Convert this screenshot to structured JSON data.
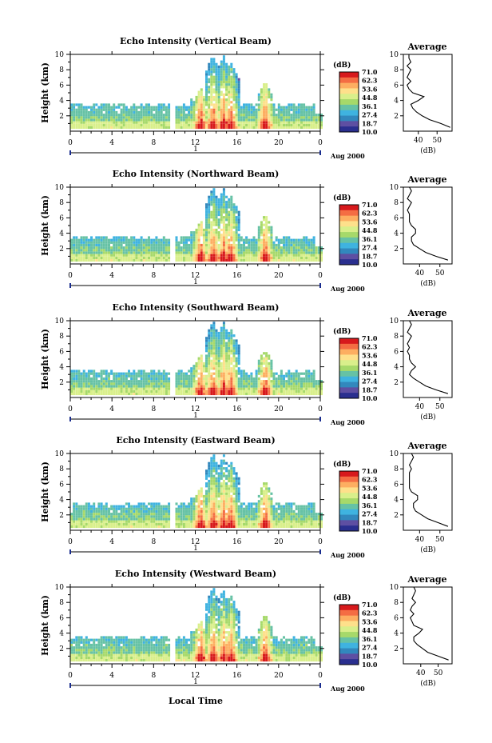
{
  "colorbar": {
    "unit": "(dB)",
    "ticks": [
      "71.0",
      "62.3",
      "53.6",
      "44.8",
      "36.1",
      "27.4",
      "18.7",
      "10.0"
    ],
    "colors": [
      "#d7191c",
      "#f46d43",
      "#fdae61",
      "#fee08b",
      "#d9ef8b",
      "#a6d96a",
      "#66c2a5",
      "#3fb3e0",
      "#3288bd",
      "#5e4fa2",
      "#2a2f8f"
    ]
  },
  "shared_x": {
    "ticks": [
      "0",
      "4",
      "8",
      "12",
      "16",
      "20",
      "0"
    ],
    "day_label": "1",
    "month_label": "Aug 2000",
    "xlabel": "Local Time"
  },
  "chart_data": [
    {
      "type": "heatmap",
      "title": "Echo Intensity (Vertical Beam)",
      "ylabel": "Height (km)",
      "yticks": [
        "2",
        "4",
        "6",
        "8",
        "10"
      ],
      "xlim": [
        0,
        24
      ],
      "ylim": [
        0,
        10
      ],
      "zlim": [
        10.0,
        71.0
      ],
      "profile": {
        "title": "Average",
        "xlabel": "(dB)",
        "xticks": [
          "40",
          "50"
        ],
        "yticks": [
          "2",
          "4",
          "6",
          "8",
          "10"
        ],
        "xlim": [
          32,
          58
        ],
        "heights": [
          0.5,
          1,
          1.5,
          2,
          2.5,
          3,
          3.5,
          4,
          4.5,
          5,
          5.5,
          6,
          6.5,
          7,
          7.5,
          8,
          8.5,
          9,
          9.5,
          10
        ],
        "values": [
          57,
          52,
          46,
          42,
          39,
          37,
          36,
          40,
          43,
          37,
          35,
          34,
          36,
          34,
          35,
          36,
          34,
          36,
          35,
          35
        ]
      }
    },
    {
      "type": "heatmap",
      "title": "Echo Intensity (Northward Beam)",
      "ylabel": "Height (km)",
      "yticks": [
        "2",
        "4",
        "6",
        "8",
        "10"
      ],
      "xlim": [
        0,
        24
      ],
      "ylim": [
        0,
        10
      ],
      "zlim": [
        10.0,
        71.0
      ],
      "profile": {
        "title": "Average",
        "xlabel": "(dB)",
        "xticks": [
          "40",
          "50"
        ],
        "yticks": [
          "2",
          "4",
          "6",
          "8",
          "10"
        ],
        "xlim": [
          32,
          56
        ],
        "heights": [
          0.5,
          1,
          1.5,
          2,
          2.5,
          3,
          3.5,
          4,
          4.5,
          5,
          5.5,
          6,
          6.5,
          7,
          7.5,
          8,
          8.5,
          9,
          9.5,
          10
        ],
        "values": [
          54,
          48,
          43,
          40,
          37,
          36,
          36,
          38,
          38,
          36,
          35,
          35,
          35,
          34,
          35,
          36,
          34,
          35,
          36,
          35
        ]
      }
    },
    {
      "type": "heatmap",
      "title": "Echo Intensity (Southward Beam)",
      "ylabel": "Height (km)",
      "yticks": [
        "2",
        "4",
        "6",
        "8",
        "10"
      ],
      "xlim": [
        0,
        24
      ],
      "ylim": [
        0,
        10
      ],
      "zlim": [
        10.0,
        71.0
      ],
      "profile": {
        "title": "Average",
        "xlabel": "(dB)",
        "xticks": [
          "40",
          "50"
        ],
        "yticks": [
          "2",
          "4",
          "6",
          "8",
          "10"
        ],
        "xlim": [
          32,
          56
        ],
        "heights": [
          0.5,
          1,
          1.5,
          2,
          2.5,
          3,
          3.5,
          4,
          4.5,
          5,
          5.5,
          6,
          6.5,
          7,
          7.5,
          8,
          8.5,
          9,
          9.5,
          10
        ],
        "values": [
          54,
          48,
          43,
          40,
          37,
          35,
          36,
          38,
          36,
          35,
          35,
          34,
          35,
          34,
          35,
          36,
          34,
          35,
          36,
          35
        ]
      }
    },
    {
      "type": "heatmap",
      "title": "Echo Intensity (Eastward Beam)",
      "ylabel": "Height (km)",
      "yticks": [
        "2",
        "4",
        "6",
        "8",
        "10"
      ],
      "xlim": [
        0,
        24
      ],
      "ylim": [
        0,
        10
      ],
      "zlim": [
        10.0,
        71.0
      ],
      "profile": {
        "title": "Average",
        "xlabel": "(dB)",
        "xticks": [
          "40",
          "50"
        ],
        "yticks": [
          "2",
          "4",
          "6",
          "8",
          "10"
        ],
        "xlim": [
          32,
          56
        ],
        "heights": [
          0.5,
          1,
          1.5,
          2,
          2.5,
          3,
          3.5,
          4,
          4.5,
          5,
          5.5,
          6,
          6.5,
          7,
          7.5,
          8,
          8.5,
          9,
          9.5,
          10
        ],
        "values": [
          54,
          49,
          44,
          41,
          38,
          37,
          37,
          39,
          39,
          36,
          35,
          35,
          35,
          35,
          35,
          36,
          35,
          36,
          37,
          36
        ]
      }
    },
    {
      "type": "heatmap",
      "title": "Echo Intensity (Westward Beam)",
      "ylabel": "Height (km)",
      "yticks": [
        "2",
        "4",
        "6",
        "8",
        "10"
      ],
      "xlim": [
        0,
        24
      ],
      "ylim": [
        0,
        10
      ],
      "zlim": [
        10.0,
        71.0
      ],
      "profile": {
        "title": "Average",
        "xlabel": "(dB)",
        "xticks": [
          "40",
          "50"
        ],
        "yticks": [
          "2",
          "4",
          "6",
          "8",
          "10"
        ],
        "xlim": [
          30,
          58
        ],
        "heights": [
          0.5,
          1,
          1.5,
          2,
          2.5,
          3,
          3.5,
          4,
          4.5,
          5,
          5.5,
          6,
          6.5,
          7,
          7.5,
          8,
          8.5,
          9,
          9.5,
          10
        ],
        "values": [
          56,
          50,
          44,
          41,
          38,
          36,
          36,
          39,
          41,
          36,
          35,
          34,
          36,
          34,
          35,
          37,
          35,
          36,
          37,
          36
        ]
      }
    }
  ]
}
